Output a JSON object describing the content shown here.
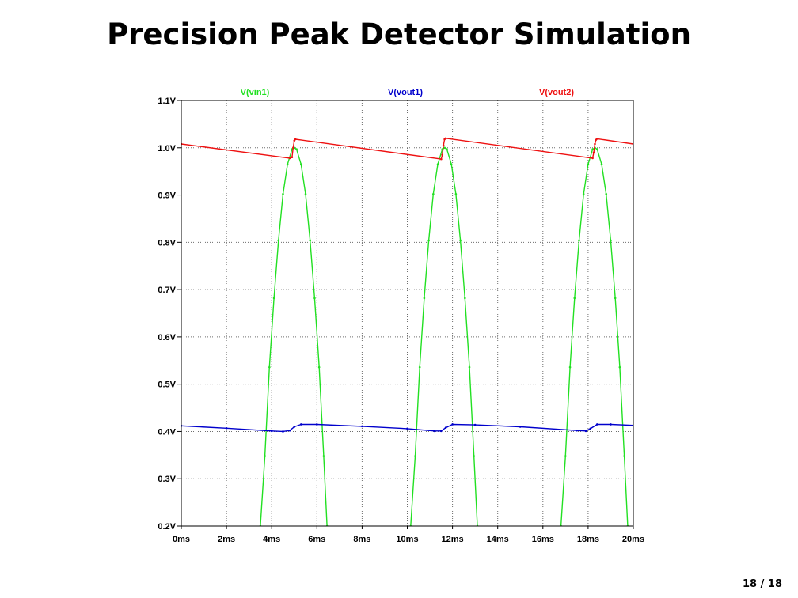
{
  "slide": {
    "title": "Precision Peak Detector Simulation",
    "page_number": "18 / 18"
  },
  "chart_data": {
    "type": "line",
    "title": "",
    "xlabel": "",
    "ylabel": "",
    "xlim": [
      0,
      20
    ],
    "ylim": [
      0.2,
      1.1
    ],
    "x_unit": "ms",
    "y_unit": "V",
    "x_ticks": [
      0,
      2,
      4,
      6,
      8,
      10,
      12,
      14,
      16,
      18,
      20
    ],
    "x_tick_labels": [
      "0ms",
      "2ms",
      "4ms",
      "6ms",
      "8ms",
      "10ms",
      "12ms",
      "14ms",
      "16ms",
      "18ms",
      "20ms"
    ],
    "y_ticks": [
      0.2,
      0.3,
      0.4,
      0.5,
      0.6,
      0.7,
      0.8,
      0.9,
      1.0,
      1.1
    ],
    "y_tick_labels": [
      "0.2V",
      "0.3V",
      "0.4V",
      "0.5V",
      "0.6V",
      "0.7V",
      "0.8V",
      "0.9V",
      "1.0V",
      "1.1V"
    ],
    "grid": true,
    "legend_position": "top",
    "series": [
      {
        "name": "V(vin1)",
        "color": "#22e022",
        "segments": [
          {
            "x": [
              3.5,
              3.7,
              3.9,
              4.1,
              4.3,
              4.5,
              4.7,
              4.9,
              5.0,
              5.1,
              5.3,
              5.5,
              5.7,
              5.9,
              6.1,
              6.3,
              6.45
            ],
            "y": [
              0.2,
              0.348,
              0.536,
              0.682,
              0.804,
              0.902,
              0.965,
              0.997,
              1.0,
              0.997,
              0.965,
              0.902,
              0.804,
              0.682,
              0.536,
              0.348,
              0.2
            ]
          },
          {
            "x": [
              10.15,
              10.35,
              10.55,
              10.75,
              10.95,
              11.15,
              11.35,
              11.55,
              11.65,
              11.75,
              11.95,
              12.15,
              12.35,
              12.55,
              12.75,
              12.95,
              13.1
            ],
            "y": [
              0.2,
              0.348,
              0.536,
              0.682,
              0.804,
              0.902,
              0.965,
              0.997,
              1.0,
              0.997,
              0.965,
              0.902,
              0.804,
              0.682,
              0.536,
              0.348,
              0.2
            ]
          },
          {
            "x": [
              16.8,
              17.0,
              17.2,
              17.4,
              17.6,
              17.8,
              18.0,
              18.2,
              18.3,
              18.4,
              18.6,
              18.8,
              19.0,
              19.2,
              19.4,
              19.6,
              19.75
            ],
            "y": [
              0.2,
              0.348,
              0.536,
              0.682,
              0.804,
              0.902,
              0.965,
              0.997,
              1.0,
              0.997,
              0.965,
              0.902,
              0.804,
              0.682,
              0.536,
              0.348,
              0.2
            ]
          }
        ]
      },
      {
        "name": "V(vout1)",
        "color": "#0000cc",
        "segments": [
          {
            "x": [
              0,
              2,
              4.0,
              4.5,
              4.8,
              5.0,
              5.3,
              6,
              8,
              10,
              11.2,
              11.5,
              11.7,
              12.0,
              13,
              15,
              17.5,
              17.9,
              18.1,
              18.4,
              19,
              20
            ],
            "y": [
              0.412,
              0.407,
              0.401,
              0.4,
              0.402,
              0.41,
              0.415,
              0.415,
              0.411,
              0.406,
              0.401,
              0.401,
              0.408,
              0.415,
              0.414,
              0.41,
              0.402,
              0.401,
              0.406,
              0.415,
              0.415,
              0.413
            ]
          }
        ]
      },
      {
        "name": "V(vout2)",
        "color": "#ee1111",
        "segments": [
          {
            "x": [
              0,
              4.8,
              4.9,
              4.95,
              5.0,
              5.05,
              11.5,
              11.55,
              11.6,
              11.65,
              11.7,
              18.2,
              18.25,
              18.3,
              18.35,
              18.4,
              20
            ],
            "y": [
              1.008,
              0.978,
              0.98,
              1.0,
              1.015,
              1.018,
              0.976,
              0.985,
              1.005,
              1.018,
              1.02,
              0.978,
              0.99,
              1.008,
              1.017,
              1.019,
              1.008
            ]
          }
        ]
      }
    ]
  }
}
